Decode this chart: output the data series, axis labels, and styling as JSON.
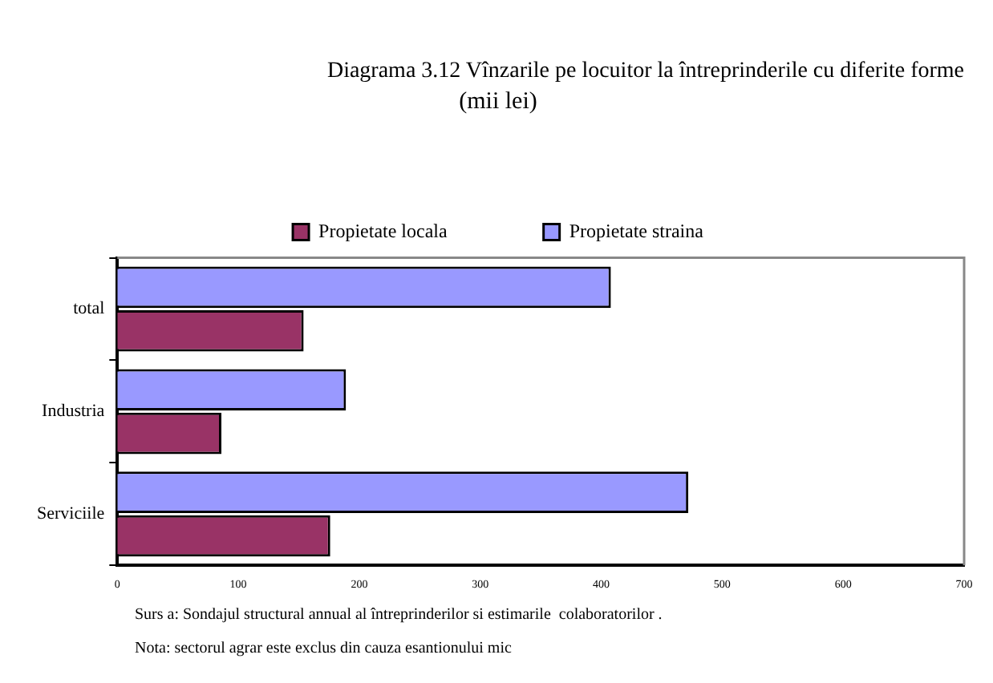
{
  "chart_data": {
    "type": "bar",
    "orientation": "horizontal",
    "title": "Diagrama 3.12 Vînzarile pe locuitor la întreprinderile cu diferite forme",
    "subtitle": "(mii lei)",
    "categories": [
      "total",
      "Industria",
      "Serviciile"
    ],
    "series": [
      {
        "name": "Propietate straina",
        "color": "#9999ff",
        "values": [
          408,
          189,
          472
        ]
      },
      {
        "name": "Propietate locala",
        "color": "#993366",
        "values": [
          154,
          86,
          176
        ]
      }
    ],
    "xlim": [
      0,
      700
    ],
    "xticks": [
      0,
      100,
      200,
      300,
      400,
      500,
      600,
      700
    ],
    "grid": false,
    "legend": "top",
    "annotations": [
      "Surs a: Sondajul structural annual al întreprinderilor si estimarile  colaboratorilor .",
      "Nota: sectorul agrar este exclus din cauza esantionului mic"
    ]
  }
}
